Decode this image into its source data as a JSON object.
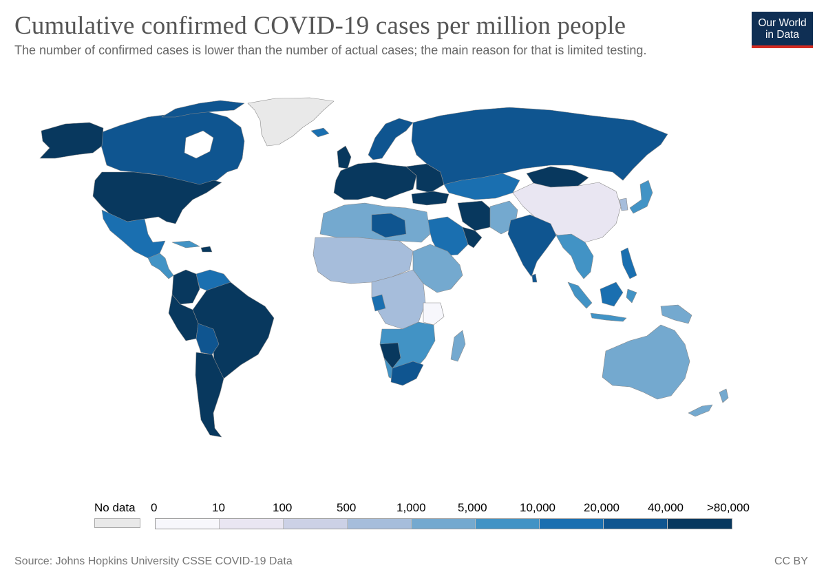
{
  "header": {
    "title": "Cumulative confirmed COVID-19 cases per million people",
    "subtitle": "The number of confirmed cases is lower than the number of actual cases; the main reason for that is limited testing."
  },
  "logo": {
    "line1": "Our World",
    "line2": "in Data"
  },
  "legend": {
    "no_data_label": "No data",
    "no_data_color": "#e9e9e9",
    "bin_labels": [
      "0",
      "10",
      "100",
      "500",
      "1,000",
      "5,000",
      "10,000",
      "20,000",
      "40,000",
      ">80,000"
    ],
    "bin_colors": [
      "#f7f7fc",
      "#e9e6f2",
      "#ccd1e6",
      "#a6bddb",
      "#74a9cf",
      "#4293c5",
      "#1a6fb0",
      "#0f5590",
      "#08385e"
    ]
  },
  "footer": {
    "source": "Source: Johns Hopkins University CSSE COVID-19 Data",
    "license": "CC BY"
  },
  "colors": {
    "logo_background": "#0f2f54",
    "logo_accent": "#d42b21",
    "title_text": "#555555"
  }
}
